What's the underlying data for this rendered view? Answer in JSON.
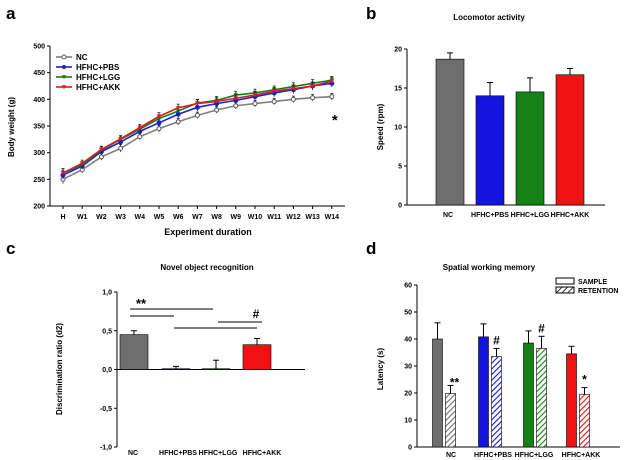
{
  "chart_data": [
    {
      "panel": "a",
      "type": "line",
      "xlabel": "Experiment duration",
      "ylabel": "Body weight (g)",
      "categories": [
        "H",
        "W1",
        "W2",
        "W3",
        "W4",
        "W5",
        "W6",
        "W7",
        "W8",
        "W9",
        "W10",
        "W11",
        "W12",
        "W13",
        "W14"
      ],
      "ylim": [
        200,
        500
      ],
      "yticks": [
        "200",
        "250",
        "300",
        "350",
        "400",
        "450",
        "500"
      ],
      "series": [
        {
          "name": "NC",
          "color": "#7f7f7f",
          "values": [
            250,
            268,
            292,
            308,
            330,
            345,
            358,
            370,
            380,
            388,
            392,
            396,
            400,
            403,
            405
          ],
          "errors": [
            8,
            6,
            6,
            7,
            6,
            6,
            6,
            6,
            6,
            6,
            6,
            6,
            6,
            6,
            6
          ]
        },
        {
          "name": "HFHC+PBS",
          "color": "#1f1fd6",
          "values": [
            258,
            275,
            302,
            320,
            340,
            356,
            372,
            385,
            392,
            398,
            405,
            412,
            418,
            425,
            430
          ],
          "errors": [
            8,
            6,
            6,
            6,
            6,
            7,
            7,
            7,
            7,
            7,
            7,
            7,
            7,
            7,
            7
          ]
        },
        {
          "name": "HFHC+LGG",
          "color": "#1a7a1a",
          "values": [
            262,
            277,
            305,
            325,
            344,
            364,
            378,
            393,
            398,
            408,
            412,
            418,
            424,
            430,
            436
          ],
          "errors": [
            8,
            6,
            6,
            6,
            6,
            7,
            7,
            7,
            7,
            7,
            7,
            7,
            7,
            7,
            7
          ]
        },
        {
          "name": "HFHC+AKK",
          "color": "#d61f1f",
          "values": [
            262,
            280,
            306,
            326,
            347,
            368,
            384,
            392,
            396,
            402,
            408,
            415,
            420,
            425,
            434
          ],
          "errors": [
            8,
            6,
            6,
            6,
            6,
            7,
            7,
            7,
            7,
            7,
            7,
            7,
            7,
            7,
            7
          ]
        }
      ],
      "annotations": [
        {
          "text": "*",
          "category": "W14",
          "y": 363
        }
      ]
    },
    {
      "panel": "b",
      "type": "bar",
      "title": "Locomotor activity",
      "xlabel": "",
      "ylabel": "Speed (rpm)",
      "categories": [
        "NC",
        "HFHC+PBS",
        "HFHC+LGG",
        "HFHC+AKK"
      ],
      "ylim": [
        0,
        20
      ],
      "yticks": [
        "0",
        "5",
        "10",
        "15",
        "20"
      ],
      "values": [
        18.7,
        14.0,
        14.5,
        16.7
      ],
      "errors": [
        0.8,
        1.7,
        1.8,
        0.8
      ],
      "colors": [
        "#6e6e6e",
        "#1414e0",
        "#148214",
        "#ee1212"
      ]
    },
    {
      "panel": "c",
      "type": "bar",
      "title": "Novel object recognition",
      "xlabel": "",
      "ylabel": "Discrimination ratio (d2)",
      "categories": [
        "NC",
        "HFHC+PBS",
        "HFHC+LGG",
        "HFHC+AKK"
      ],
      "ylim": [
        -1.0,
        1.0
      ],
      "yticks": [
        "-1,0",
        "-0,5",
        "0,0",
        "0,5",
        "1,0"
      ],
      "values": [
        0.45,
        0.01,
        0.01,
        0.32
      ],
      "errors": [
        0.05,
        0.03,
        0.11,
        0.08
      ],
      "colors": [
        "#6e6e6e",
        "#1414e0",
        "#148214",
        "#ee1212"
      ],
      "annotations": [
        "**",
        "#"
      ]
    },
    {
      "panel": "d",
      "type": "bar",
      "title": "Spatial working memory",
      "xlabel": "",
      "ylabel": "Latency (s)",
      "categories": [
        "NC",
        "HFHC+PBS",
        "HFHC+LGG",
        "HFHC+AKK"
      ],
      "ylim": [
        0,
        60
      ],
      "yticks": [
        "0",
        "10",
        "20",
        "30",
        "40",
        "50",
        "60"
      ],
      "legend": [
        "SAMPLE",
        "RETENTION"
      ],
      "series": [
        {
          "name": "SAMPLE",
          "values": [
            40.0,
            40.8,
            38.5,
            34.5
          ],
          "errors": [
            6.0,
            4.8,
            4.5,
            2.8
          ]
        },
        {
          "name": "RETENTION",
          "values": [
            19.8,
            33.5,
            36.5,
            19.5
          ],
          "errors": [
            3.0,
            3.0,
            4.5,
            2.5
          ]
        }
      ],
      "colors": [
        "#6e6e6e",
        "#1414e0",
        "#148214",
        "#ee1212"
      ],
      "annotations": [
        "**",
        "#",
        "#",
        "*"
      ]
    }
  ],
  "panel_letters": [
    "a",
    "b",
    "c",
    "d"
  ]
}
